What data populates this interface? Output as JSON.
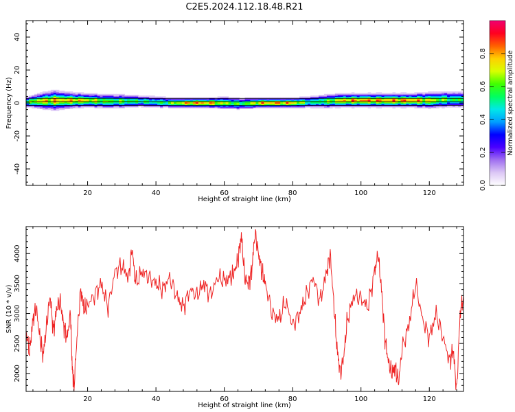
{
  "figure": {
    "title": "C2E5.2024.112.18.48.R21"
  },
  "colorbar": {
    "label": "Normalized spectral amplitude",
    "ticks": [
      0.0,
      0.2,
      0.4,
      0.6,
      0.8
    ],
    "tick_labels": [
      "0.0",
      "0.2",
      "0.4",
      "0.6",
      "0.8"
    ],
    "range": [
      0,
      1
    ],
    "colors": [
      "#ffffff",
      "#dcc7f5",
      "#a070f0",
      "#4a00ff",
      "#0000ff",
      "#00a0ff",
      "#00e8e8",
      "#00ff60",
      "#40ff00",
      "#d8ff00",
      "#ffd000",
      "#ff6000",
      "#ff0020",
      "#f00070"
    ]
  },
  "chart_data": [
    {
      "type": "heatmap",
      "name": "spectrogram",
      "xlabel": "Height of straight line (km)",
      "ylabel": "Frequency (Hz)",
      "xlim": [
        2,
        130
      ],
      "ylim": [
        -50,
        50
      ],
      "xticks": [
        20,
        40,
        60,
        80,
        100,
        120
      ],
      "yticks": [
        -40,
        -20,
        0,
        20,
        40
      ],
      "xtick_labels": [
        "20",
        "40",
        "60",
        "80",
        "100",
        "120"
      ],
      "ytick_labels": [
        "-40",
        "-20",
        "0",
        "20",
        "40"
      ],
      "ridge": {
        "x": [
          2,
          5,
          10,
          15,
          20,
          25,
          30,
          35,
          40,
          45,
          50,
          55,
          60,
          65,
          70,
          75,
          80,
          85,
          90,
          95,
          100,
          105,
          110,
          115,
          120,
          125,
          130
        ],
        "center_hz": [
          0.5,
          1.0,
          1.5,
          1.5,
          1.5,
          1.0,
          1.0,
          1.0,
          0.5,
          0.0,
          0.0,
          0.0,
          0.0,
          -0.5,
          0.0,
          0.0,
          0.0,
          0.5,
          1.0,
          1.5,
          1.5,
          1.5,
          1.5,
          1.5,
          1.5,
          2.0,
          2.0
        ],
        "halfwidth_hz": [
          2.5,
          3.5,
          5.0,
          4.0,
          3.5,
          3.5,
          3.5,
          3.0,
          3.0,
          2.5,
          2.5,
          2.5,
          3.0,
          3.0,
          2.5,
          2.5,
          2.5,
          3.0,
          3.5,
          3.5,
          3.5,
          3.5,
          3.5,
          3.5,
          4.0,
          4.0,
          4.0
        ],
        "peak_amplitude": [
          0.6,
          0.85,
          0.9,
          0.9,
          0.85,
          0.75,
          0.7,
          0.65,
          0.6,
          0.75,
          0.95,
          0.95,
          0.8,
          0.65,
          0.9,
          0.95,
          0.9,
          0.6,
          0.7,
          0.9,
          0.95,
          0.95,
          0.95,
          0.95,
          0.85,
          0.7,
          0.65
        ]
      },
      "horizontal_lines_hz": [
        -1.5,
        0.8,
        2.8
      ]
    },
    {
      "type": "line",
      "name": "snr",
      "xlabel": "Height of straight line (km)",
      "ylabel": "SNR (10 * v/v)",
      "xlim": [
        2,
        130
      ],
      "ylim": [
        1700,
        4450
      ],
      "xticks": [
        20,
        40,
        60,
        80,
        100,
        120
      ],
      "yticks": [
        2000,
        2500,
        3000,
        3500,
        4000
      ],
      "xtick_labels": [
        "20",
        "40",
        "60",
        "80",
        "100",
        "120"
      ],
      "ytick_labels": [
        "2000",
        "2500",
        "3000",
        "3500",
        "4000"
      ],
      "color": "#ee2222",
      "x": [
        2,
        3,
        4,
        5,
        6,
        7,
        8,
        9,
        10,
        11,
        12,
        13,
        14,
        15,
        15.5,
        16,
        17,
        18,
        19,
        20,
        22,
        24,
        26,
        28,
        30,
        32,
        33,
        34,
        36,
        38,
        40,
        42,
        44,
        46,
        48,
        50,
        52,
        54,
        56,
        58,
        60,
        62,
        63,
        64,
        65,
        66,
        67,
        68,
        69,
        70,
        71,
        72,
        74,
        76,
        78,
        80,
        82,
        84,
        86,
        88,
        90,
        91,
        92,
        93,
        94,
        95,
        96,
        98,
        100,
        102,
        104,
        105,
        106,
        107,
        108,
        109,
        110,
        111,
        112,
        114,
        116,
        118,
        120,
        122,
        124,
        126,
        127,
        128,
        129,
        130
      ],
      "y": [
        2700,
        2350,
        2900,
        3100,
        2600,
        2300,
        2800,
        3300,
        2700,
        3100,
        3200,
        2800,
        2600,
        3000,
        2100,
        1750,
        2700,
        3400,
        3050,
        3150,
        3300,
        3500,
        3100,
        3700,
        3800,
        3600,
        4100,
        3500,
        3700,
        3600,
        3500,
        3400,
        3600,
        3300,
        3100,
        3400,
        3300,
        3500,
        3300,
        3600,
        3550,
        3600,
        3700,
        3900,
        4300,
        3600,
        3500,
        3700,
        4350,
        4000,
        3700,
        3500,
        3000,
        2900,
        3200,
        2800,
        3000,
        3300,
        3600,
        3200,
        3700,
        4000,
        3200,
        2400,
        2000,
        2300,
        2900,
        3300,
        3250,
        3100,
        3700,
        4000,
        3400,
        2600,
        2200,
        2000,
        2100,
        1850,
        2400,
        2800,
        3500,
        2900,
        2600,
        3000,
        2600,
        2200,
        2400,
        1700,
        3000,
        3300
      ]
    }
  ]
}
